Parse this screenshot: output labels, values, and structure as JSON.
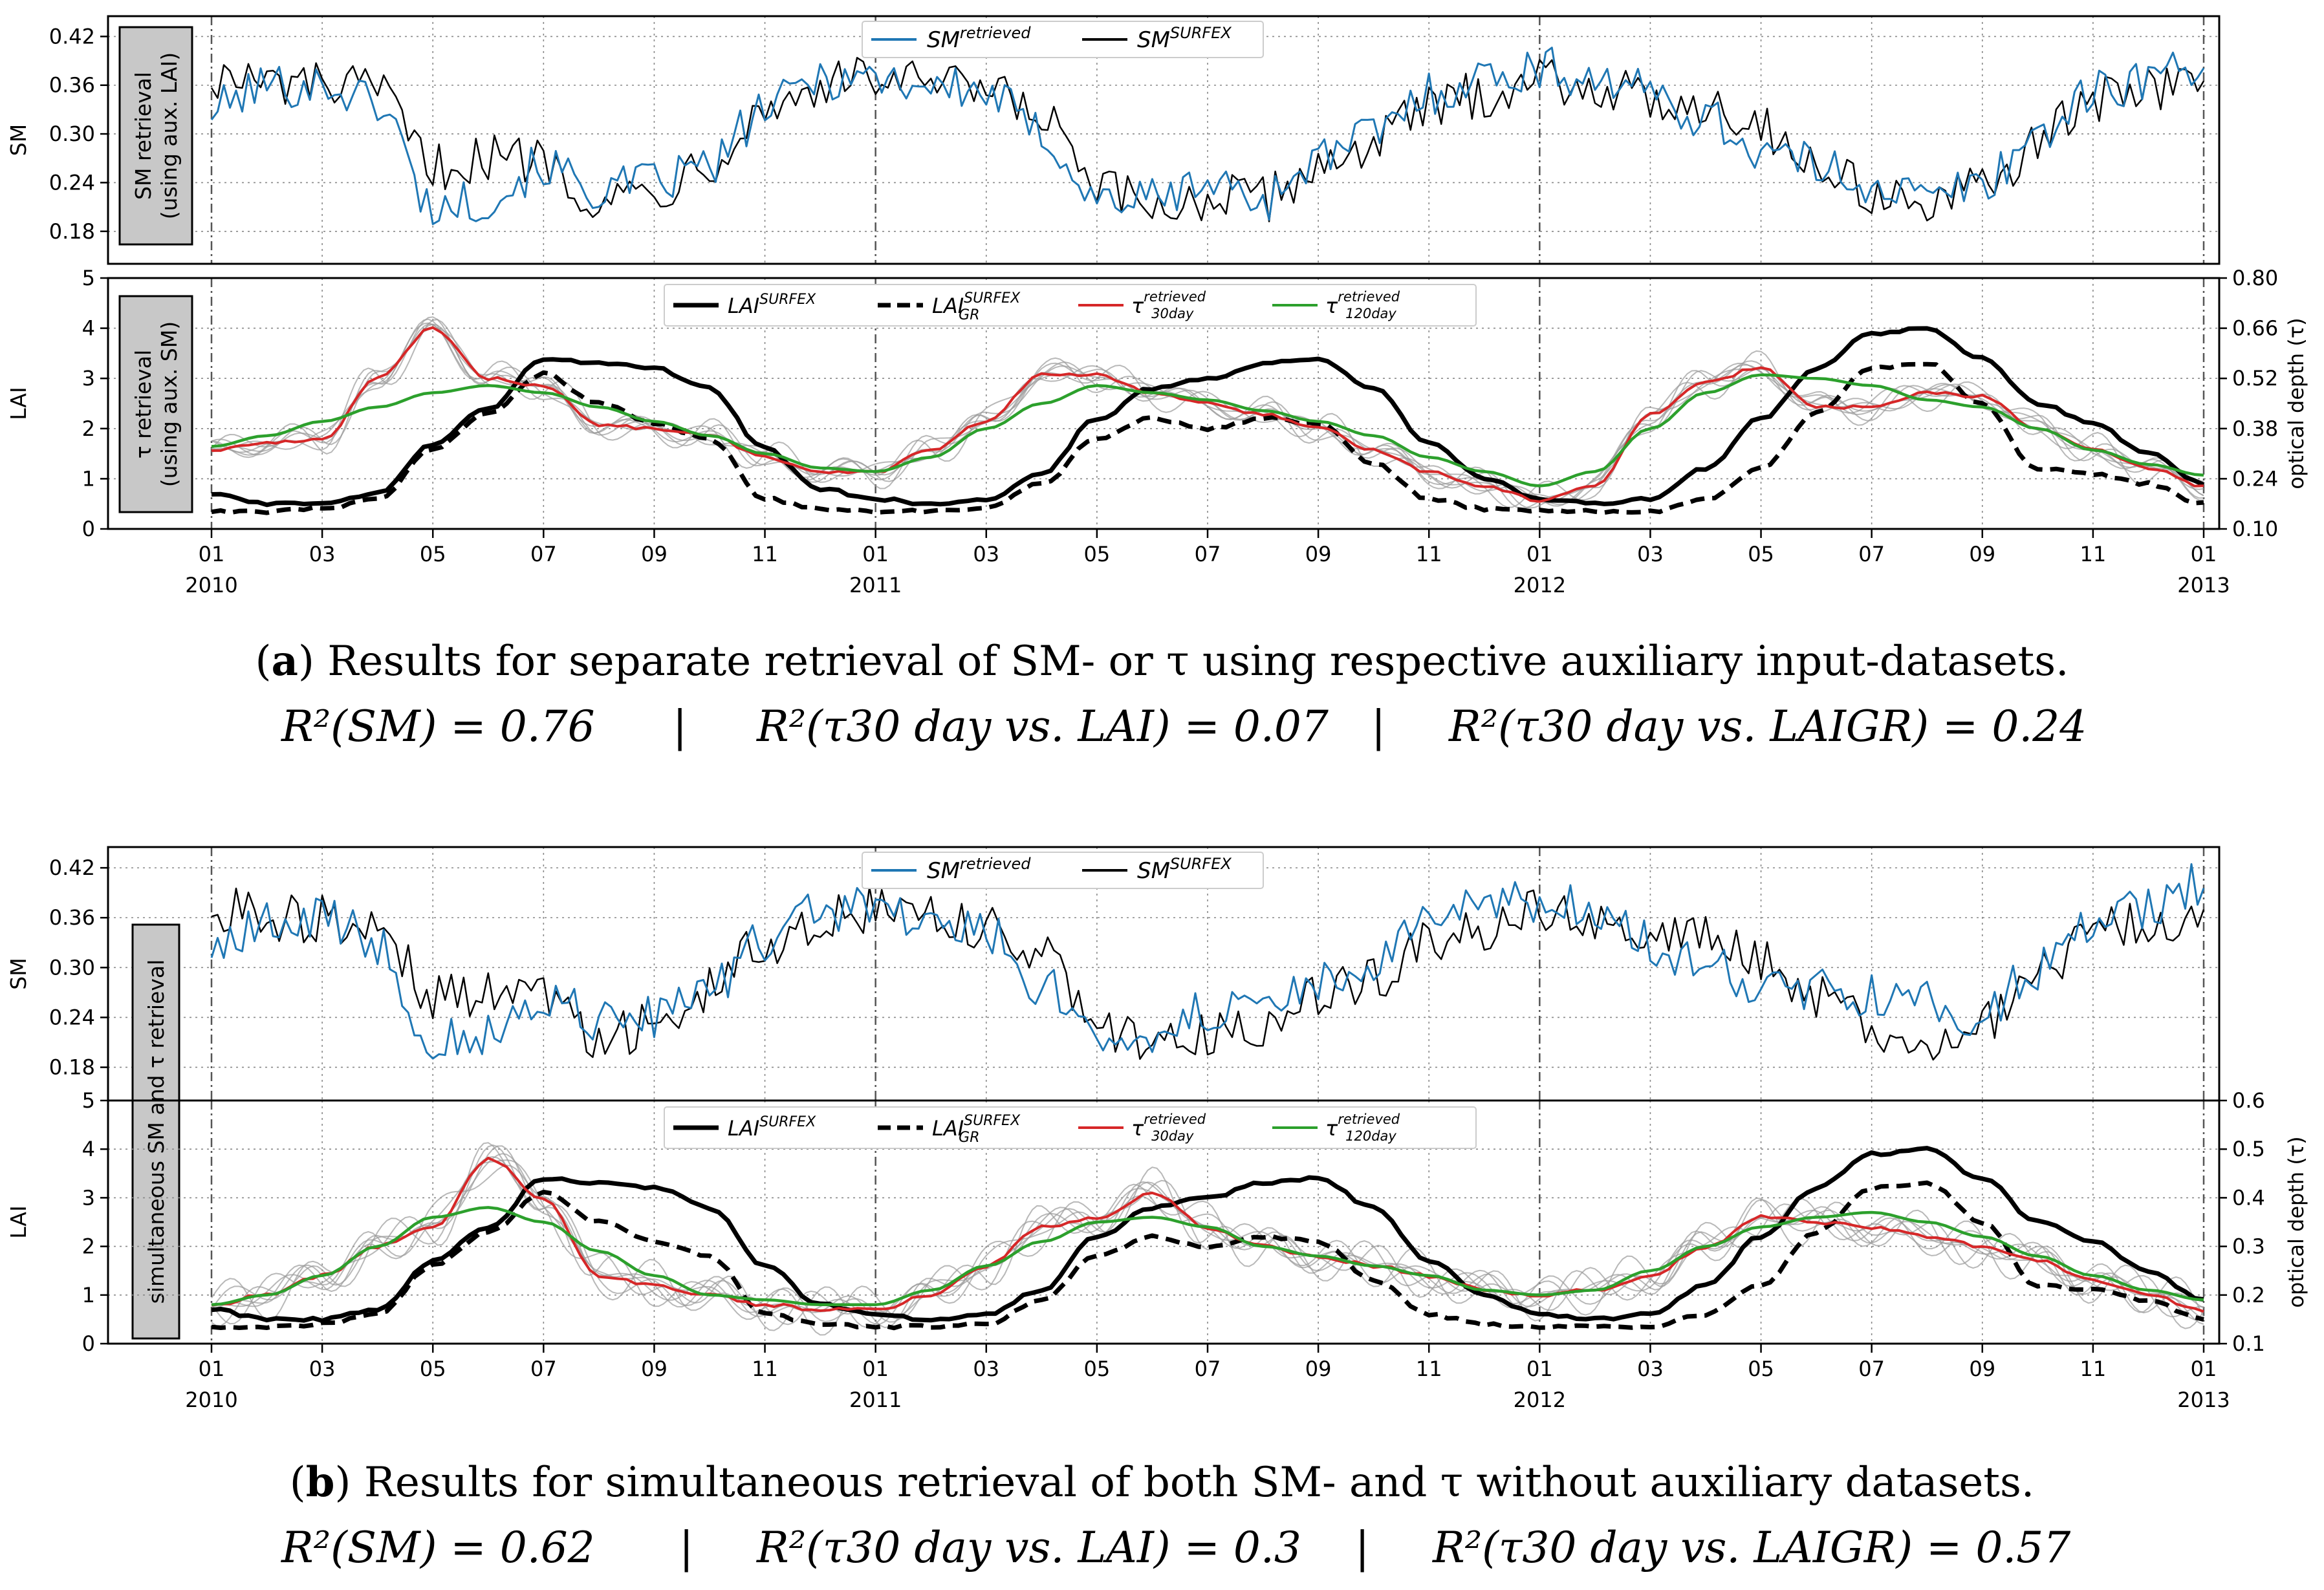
{
  "colors": {
    "retrieved": "#1f77b4",
    "surfex": "#000000",
    "tau30": "#d62728",
    "tau120": "#2ca02c",
    "ensemble": "#9a9a9a",
    "boxfill": "#c8c8c8"
  },
  "x_ticks": [
    {
      "label": "01",
      "year": "2010",
      "t": 0
    },
    {
      "label": "03",
      "year": "",
      "t": 2
    },
    {
      "label": "05",
      "year": "",
      "t": 4
    },
    {
      "label": "07",
      "year": "",
      "t": 6
    },
    {
      "label": "09",
      "year": "",
      "t": 8
    },
    {
      "label": "11",
      "year": "",
      "t": 10
    },
    {
      "label": "01",
      "year": "2011",
      "t": 12
    },
    {
      "label": "03",
      "year": "",
      "t": 14
    },
    {
      "label": "05",
      "year": "",
      "t": 16
    },
    {
      "label": "07",
      "year": "",
      "t": 18
    },
    {
      "label": "09",
      "year": "",
      "t": 20
    },
    {
      "label": "11",
      "year": "",
      "t": 22
    },
    {
      "label": "01",
      "year": "2012",
      "t": 24
    },
    {
      "label": "03",
      "year": "",
      "t": 26
    },
    {
      "label": "05",
      "year": "",
      "t": 28
    },
    {
      "label": "07",
      "year": "",
      "t": 30
    },
    {
      "label": "09",
      "year": "",
      "t": 32
    },
    {
      "label": "11",
      "year": "",
      "t": 34
    },
    {
      "label": "01",
      "year": "2013",
      "t": 36
    }
  ],
  "chart_data": [
    {
      "type": "line",
      "panel": "a-top",
      "ylabel": "SM",
      "box_label": [
        "SM retrieval",
        "(using aux. LAI)"
      ],
      "ylim": [
        0.14,
        0.445
      ],
      "yticks": [
        "0.18",
        "0.24",
        "0.30",
        "0.36",
        "0.42"
      ],
      "legend": [
        "SM",
        "retrieved",
        "SM",
        "SURFEX"
      ],
      "series": [
        {
          "name": "SM retrieved",
          "monthly_anchor_values": [
            0.33,
            0.36,
            0.36,
            0.34,
            0.21,
            0.22,
            0.26,
            0.23,
            0.24,
            0.26,
            0.33,
            0.37,
            0.37,
            0.36,
            0.35,
            0.3,
            0.22,
            0.22,
            0.24,
            0.22,
            0.27,
            0.3,
            0.35,
            0.37,
            0.38,
            0.37,
            0.35,
            0.32,
            0.28,
            0.26,
            0.24,
            0.22,
            0.24,
            0.3,
            0.35,
            0.37,
            0.39
          ]
        },
        {
          "name": "SM SURFEX",
          "monthly_anchor_values": [
            0.37,
            0.36,
            0.36,
            0.35,
            0.26,
            0.27,
            0.27,
            0.22,
            0.23,
            0.27,
            0.33,
            0.36,
            0.37,
            0.36,
            0.35,
            0.32,
            0.23,
            0.21,
            0.22,
            0.22,
            0.26,
            0.29,
            0.33,
            0.35,
            0.37,
            0.36,
            0.34,
            0.34,
            0.31,
            0.26,
            0.23,
            0.21,
            0.23,
            0.29,
            0.34,
            0.36,
            0.36
          ]
        }
      ]
    },
    {
      "type": "line",
      "panel": "a-bottom",
      "ylabel": "LAI",
      "ylabel_right": "optical depth (τ)",
      "box_label": [
        "τ retrieval",
        "(using aux. SM)"
      ],
      "ylim": [
        0,
        5
      ],
      "yticks": [
        "0",
        "1",
        "2",
        "3",
        "4",
        "5"
      ],
      "ylim_right": [
        0.1,
        0.8
      ],
      "yticks_right": [
        "0.10",
        "0.24",
        "0.38",
        "0.52",
        "0.66",
        "0.80"
      ],
      "legend": [
        "LAI",
        "SURFEX",
        "LAI",
        "SURFEX",
        "GR",
        "τ",
        "retrieved",
        "30day",
        "τ",
        "retrieved",
        "120day"
      ],
      "series": [
        {
          "name": "LAI SURFEX",
          "axis": "left",
          "monthly_anchor_values": [
            0.7,
            0.5,
            0.5,
            0.7,
            1.7,
            2.4,
            3.4,
            3.3,
            3.2,
            2.8,
            1.6,
            0.8,
            0.6,
            0.5,
            0.6,
            1.1,
            2.2,
            2.8,
            3.0,
            3.3,
            3.4,
            2.8,
            1.7,
            1.0,
            0.6,
            0.5,
            0.6,
            1.2,
            2.2,
            3.2,
            3.9,
            4.0,
            3.4,
            2.5,
            2.1,
            1.5,
            0.9
          ]
        },
        {
          "name": "LAI SURFEX GR",
          "axis": "left",
          "monthly_anchor_values": [
            0.35,
            0.35,
            0.4,
            0.6,
            1.6,
            2.3,
            3.1,
            2.5,
            2.1,
            1.8,
            0.6,
            0.4,
            0.35,
            0.35,
            0.4,
            0.9,
            1.8,
            2.2,
            2.0,
            2.2,
            2.1,
            1.3,
            0.6,
            0.4,
            0.35,
            0.35,
            0.35,
            0.6,
            1.2,
            2.3,
            3.2,
            3.3,
            2.5,
            1.2,
            1.1,
            0.9,
            0.5
          ]
        },
        {
          "name": "τ retrieved 30day",
          "axis": "right",
          "monthly_anchor_values": [
            0.32,
            0.34,
            0.35,
            0.52,
            0.66,
            0.52,
            0.5,
            0.39,
            0.38,
            0.36,
            0.3,
            0.26,
            0.26,
            0.32,
            0.4,
            0.53,
            0.53,
            0.48,
            0.45,
            0.42,
            0.38,
            0.32,
            0.26,
            0.22,
            0.18,
            0.22,
            0.42,
            0.51,
            0.55,
            0.44,
            0.44,
            0.48,
            0.47,
            0.38,
            0.32,
            0.27,
            0.22
          ]
        },
        {
          "name": "τ retrieved 120day",
          "axis": "right",
          "monthly_anchor_values": [
            0.33,
            0.36,
            0.4,
            0.44,
            0.48,
            0.5,
            0.48,
            0.44,
            0.4,
            0.36,
            0.31,
            0.27,
            0.26,
            0.3,
            0.38,
            0.45,
            0.5,
            0.48,
            0.46,
            0.43,
            0.4,
            0.36,
            0.3,
            0.26,
            0.22,
            0.26,
            0.38,
            0.48,
            0.53,
            0.52,
            0.5,
            0.46,
            0.44,
            0.38,
            0.32,
            0.28,
            0.25
          ]
        }
      ]
    },
    {
      "type": "line",
      "panel": "b-top",
      "ylabel": "SM",
      "box_label": [
        "simultaneous SM and τ retrieval"
      ],
      "ylim": [
        0.14,
        0.445
      ],
      "yticks": [
        "0.18",
        "0.24",
        "0.30",
        "0.36",
        "0.42"
      ],
      "legend": [
        "SM",
        "retrieved",
        "SM",
        "SURFEX"
      ],
      "series": [
        {
          "name": "SM retrieved",
          "monthly_anchor_values": [
            0.32,
            0.35,
            0.36,
            0.33,
            0.21,
            0.22,
            0.26,
            0.24,
            0.24,
            0.27,
            0.33,
            0.37,
            0.37,
            0.36,
            0.34,
            0.28,
            0.21,
            0.22,
            0.25,
            0.24,
            0.28,
            0.31,
            0.35,
            0.37,
            0.38,
            0.37,
            0.33,
            0.3,
            0.28,
            0.27,
            0.27,
            0.26,
            0.24,
            0.3,
            0.35,
            0.37,
            0.4
          ]
        },
        {
          "name": "SM SURFEX",
          "monthly_anchor_values": [
            0.37,
            0.36,
            0.36,
            0.35,
            0.26,
            0.27,
            0.27,
            0.22,
            0.23,
            0.27,
            0.33,
            0.36,
            0.37,
            0.36,
            0.35,
            0.32,
            0.23,
            0.21,
            0.22,
            0.22,
            0.26,
            0.29,
            0.33,
            0.35,
            0.37,
            0.36,
            0.34,
            0.34,
            0.31,
            0.26,
            0.23,
            0.21,
            0.23,
            0.29,
            0.34,
            0.36,
            0.36
          ]
        }
      ]
    },
    {
      "type": "line",
      "panel": "b-bottom",
      "ylabel": "LAI",
      "ylabel_right": "optical depth (τ)",
      "ylim": [
        0,
        5
      ],
      "yticks": [
        "0",
        "1",
        "2",
        "3",
        "4",
        "5"
      ],
      "ylim_right": [
        0.1,
        0.6
      ],
      "yticks_right": [
        "0.1",
        "0.2",
        "0.3",
        "0.4",
        "0.5",
        "0.6"
      ],
      "legend": [
        "LAI",
        "SURFEX",
        "LAI",
        "SURFEX",
        "GR",
        "τ",
        "retrieved",
        "30day",
        "τ",
        "retrieved",
        "120day"
      ],
      "series": [
        {
          "name": "LAI SURFEX",
          "axis": "left",
          "monthly_anchor_values": [
            0.7,
            0.5,
            0.5,
            0.7,
            1.7,
            2.4,
            3.4,
            3.3,
            3.2,
            2.8,
            1.6,
            0.8,
            0.6,
            0.5,
            0.6,
            1.1,
            2.2,
            2.8,
            3.0,
            3.3,
            3.4,
            2.8,
            1.7,
            1.0,
            0.6,
            0.5,
            0.6,
            1.2,
            2.2,
            3.2,
            3.9,
            4.0,
            3.4,
            2.5,
            2.1,
            1.5,
            0.9
          ]
        },
        {
          "name": "LAI SURFEX GR",
          "axis": "left",
          "monthly_anchor_values": [
            0.35,
            0.35,
            0.4,
            0.6,
            1.6,
            2.3,
            3.1,
            2.5,
            2.1,
            1.8,
            0.6,
            0.4,
            0.35,
            0.35,
            0.4,
            0.9,
            1.8,
            2.2,
            2.0,
            2.2,
            2.1,
            1.3,
            0.6,
            0.4,
            0.35,
            0.35,
            0.35,
            0.6,
            1.2,
            2.3,
            3.2,
            3.3,
            2.5,
            1.2,
            1.1,
            0.9,
            0.5
          ]
        },
        {
          "name": "τ retrieved 30day",
          "axis": "right",
          "monthly_anchor_values": [
            0.18,
            0.2,
            0.24,
            0.3,
            0.34,
            0.48,
            0.4,
            0.24,
            0.22,
            0.2,
            0.18,
            0.17,
            0.17,
            0.2,
            0.26,
            0.34,
            0.36,
            0.41,
            0.34,
            0.3,
            0.28,
            0.26,
            0.24,
            0.21,
            0.2,
            0.21,
            0.24,
            0.3,
            0.36,
            0.35,
            0.34,
            0.32,
            0.3,
            0.27,
            0.23,
            0.2,
            0.17
          ]
        },
        {
          "name": "τ retrieved 120day",
          "axis": "right",
          "monthly_anchor_values": [
            0.18,
            0.2,
            0.24,
            0.3,
            0.36,
            0.38,
            0.35,
            0.29,
            0.24,
            0.2,
            0.19,
            0.18,
            0.18,
            0.21,
            0.26,
            0.31,
            0.35,
            0.36,
            0.34,
            0.3,
            0.28,
            0.26,
            0.24,
            0.21,
            0.2,
            0.21,
            0.25,
            0.3,
            0.34,
            0.36,
            0.37,
            0.35,
            0.32,
            0.28,
            0.24,
            0.21,
            0.19
          ]
        }
      ]
    }
  ],
  "captions": {
    "a": {
      "letter": "a",
      "text": "Results for separate retrieval of SM- or τ using respective auxiliary input-datasets.",
      "r2": [
        "R²(SM) = 0.76",
        "|",
        "R²(τ30 day vs. LAI) = 0.07",
        "|",
        "R²(τ30 day vs. LAIGR) = 0.24"
      ]
    },
    "b": {
      "letter": "b",
      "text": "Results for simultaneous retrieval of both SM- and τ without auxiliary datasets.",
      "r2": [
        "R²(SM) = 0.62",
        "|",
        "R²(τ30 day vs. LAI) = 0.3",
        "|",
        "R²(τ30 day vs. LAIGR) = 0.57"
      ]
    }
  }
}
